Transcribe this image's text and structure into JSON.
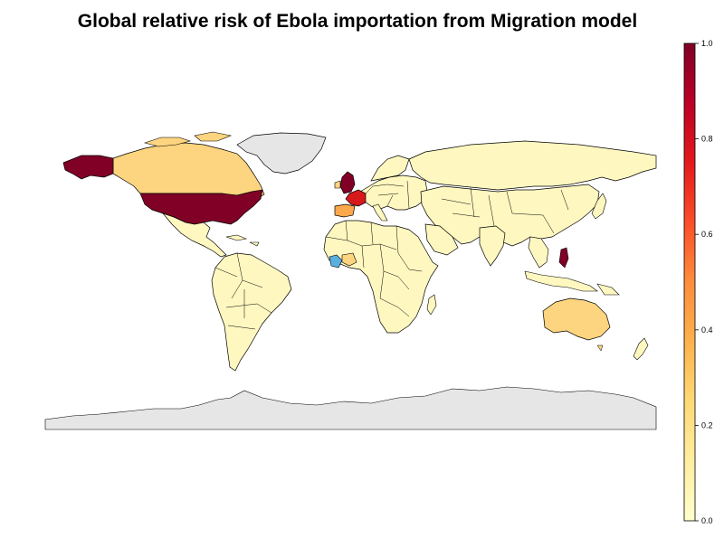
{
  "title": "Global relative risk of Ebola importation from Migration model",
  "legend": {
    "ticks": [
      "0.0",
      "0.2",
      "0.4",
      "0.6",
      "0.8",
      "1.0"
    ],
    "min": 0.0,
    "max": 1.0,
    "colors": [
      "#ffffcc",
      "#ffeda0",
      "#fed976",
      "#feb24c",
      "#fd8d3c",
      "#fc4e2a",
      "#e31a1c",
      "#bd0026",
      "#800026"
    ]
  },
  "colors": {
    "land_low": "#fff7c0",
    "land_lowmid": "#fee79a",
    "land_mid": "#fdd47f",
    "land_orange": "#fba94a",
    "land_red": "#d7191c",
    "land_darkred": "#800026",
    "no_data": "#e6e6e6",
    "source_blue": "#5aafe0",
    "border": "#000000"
  },
  "regions": [
    {
      "name": "United States",
      "risk": 1.0
    },
    {
      "name": "United Kingdom",
      "risk": 1.0
    },
    {
      "name": "France",
      "risk": 0.9
    },
    {
      "name": "Spain",
      "risk": 0.35
    },
    {
      "name": "Canada",
      "risk": 0.2
    },
    {
      "name": "Australia",
      "risk": 0.25
    },
    {
      "name": "Philippines",
      "risk": 1.0
    },
    {
      "name": "Greenland",
      "risk": null
    },
    {
      "name": "Antarctica",
      "risk": null
    }
  ]
}
